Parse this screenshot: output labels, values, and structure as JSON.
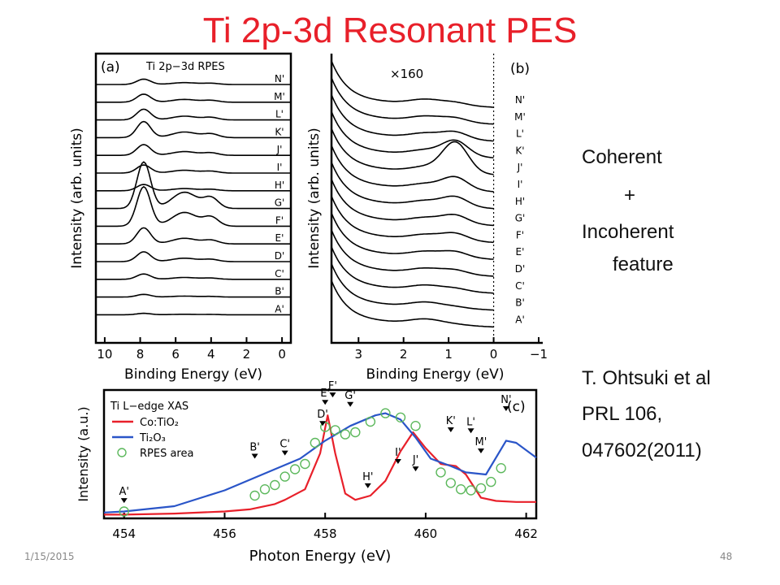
{
  "slide": {
    "title": "Ti 2p-3d Resonant PES",
    "coherent": "Coherent",
    "plus": "+",
    "incoherent": "Incoherent",
    "feature": "feature",
    "ref_line1": "T. Ohtsuki et al",
    "ref_line2": "PRL 106,",
    "ref_line3": "047602(2011)",
    "date": "1/15/2015",
    "page": "48"
  },
  "colors": {
    "title": "#e8202a",
    "red": "#e8202a",
    "blue": "#2a55c8",
    "green": "#5cb85c"
  },
  "chart_data": [
    {
      "panel": "(a)",
      "type": "line",
      "title": "Ti 2p−3d RPES",
      "xlabel": "Binding Energy (eV)",
      "ylabel": "Intensity (arb. units)",
      "xlim": [
        10.5,
        -0.5
      ],
      "xticks": [
        10,
        8,
        6,
        4,
        2,
        0
      ],
      "series_labels": [
        "N'",
        "M'",
        "L'",
        "K'",
        "J'",
        "I'",
        "H'",
        "G'",
        "F'",
        "E'",
        "D'",
        "C'",
        "B'",
        "A'"
      ],
      "peak_amplitudes": [
        0.3,
        0.45,
        0.6,
        0.9,
        0.6,
        0.45,
        0.35,
        2.6,
        2.2,
        0.9,
        0.55,
        0.3,
        0.15,
        0.08
      ]
    },
    {
      "panel": "(b)",
      "type": "line",
      "annotation": "×160",
      "xlabel": "Binding Energy (eV)",
      "ylabel": "Intensity (arb. units)",
      "xlim": [
        3.6,
        -1
      ],
      "xticks": [
        3,
        2,
        1,
        0,
        -1
      ],
      "series_labels": [
        "N'",
        "M'",
        "L'",
        "K'",
        "J'",
        "I'",
        "H'",
        "G'",
        "F'",
        "E'",
        "D'",
        "C'",
        "B'",
        "A'"
      ],
      "bump_amplitudes": [
        0.1,
        0.15,
        0.25,
        0.55,
        1.1,
        0.45,
        0.35,
        0.3,
        0.25,
        0.2,
        0.15,
        0.1,
        0.05,
        0.03
      ]
    },
    {
      "panel": "(c)",
      "type": "line",
      "title": "Ti L−edge XAS",
      "xlabel": "Photon Energy (eV)",
      "ylabel": "Intensity (a.u.)",
      "xlim": [
        453.6,
        462.2
      ],
      "xticks": [
        454,
        456,
        458,
        460,
        462
      ],
      "legend": [
        "Co:TiO₂",
        "Ti₂O₃",
        "RPES area"
      ],
      "series": [
        {
          "name": "Co:TiO₂",
          "x": [
            453.6,
            454,
            455,
            456,
            456.5,
            457,
            457.2,
            457.6,
            457.9,
            458.05,
            458.2,
            458.4,
            458.6,
            458.9,
            459.2,
            459.5,
            459.75,
            460,
            460.3,
            460.6,
            460.8,
            461.1,
            461.4,
            461.8,
            462.2
          ],
          "y": [
            0.02,
            0.02,
            0.03,
            0.05,
            0.07,
            0.12,
            0.16,
            0.26,
            0.6,
            0.96,
            0.6,
            0.22,
            0.16,
            0.2,
            0.34,
            0.62,
            0.8,
            0.65,
            0.5,
            0.48,
            0.4,
            0.18,
            0.15,
            0.14,
            0.14
          ]
        },
        {
          "name": "Ti₂O₃",
          "x": [
            453.6,
            454,
            455,
            456,
            456.5,
            457,
            457.5,
            458,
            458.5,
            459,
            459.2,
            459.5,
            459.8,
            460.1,
            460.5,
            460.8,
            461.2,
            461.6,
            461.8,
            462.2
          ],
          "y": [
            0.04,
            0.05,
            0.1,
            0.25,
            0.35,
            0.45,
            0.55,
            0.72,
            0.86,
            0.96,
            0.98,
            0.92,
            0.75,
            0.55,
            0.48,
            0.42,
            0.4,
            0.72,
            0.7,
            0.56
          ]
        },
        {
          "name": "RPES area",
          "x": [
            454,
            456.6,
            456.8,
            457.0,
            457.2,
            457.4,
            457.6,
            457.8,
            458.0,
            458.2,
            458.4,
            458.6,
            458.9,
            459.2,
            459.5,
            459.8,
            460.3,
            460.5,
            460.7,
            460.9,
            461.1,
            461.3,
            461.5
          ],
          "y": [
            0.05,
            0.2,
            0.26,
            0.3,
            0.38,
            0.45,
            0.5,
            0.7,
            0.85,
            0.82,
            0.78,
            0.8,
            0.9,
            0.98,
            0.94,
            0.86,
            0.42,
            0.32,
            0.26,
            0.25,
            0.27,
            0.33,
            0.46
          ]
        }
      ],
      "markers": [
        {
          "label": "A'",
          "x": 454.0,
          "y": 0.13
        },
        {
          "label": "B'",
          "x": 456.6,
          "y": 0.55
        },
        {
          "label": "C'",
          "x": 457.2,
          "y": 0.58
        },
        {
          "label": "D'",
          "x": 457.95,
          "y": 0.86
        },
        {
          "label": "E'",
          "x": 458.0,
          "y": 1.06
        },
        {
          "label": "F'",
          "x": 458.15,
          "y": 1.13
        },
        {
          "label": "G'",
          "x": 458.5,
          "y": 1.04
        },
        {
          "label": "H'",
          "x": 458.85,
          "y": 0.27
        },
        {
          "label": "I'",
          "x": 459.45,
          "y": 0.5
        },
        {
          "label": "J'",
          "x": 459.8,
          "y": 0.43
        },
        {
          "label": "K'",
          "x": 460.5,
          "y": 0.8
        },
        {
          "label": "L'",
          "x": 460.9,
          "y": 0.79
        },
        {
          "label": "M'",
          "x": 461.1,
          "y": 0.6
        },
        {
          "label": "N'",
          "x": 461.6,
          "y": 1.0
        }
      ]
    }
  ]
}
